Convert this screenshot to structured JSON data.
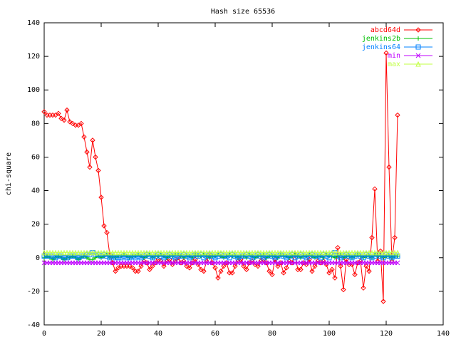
{
  "chart_data": {
    "type": "line",
    "title": "Hash size 65536",
    "y_label": "chi-square",
    "x": [
      0,
      1,
      2,
      3,
      4,
      5,
      6,
      7,
      8,
      9,
      10,
      11,
      12,
      13,
      14,
      15,
      16,
      17,
      18,
      19,
      20,
      21,
      22,
      23,
      24,
      25,
      26,
      27,
      28,
      29,
      30,
      31,
      32,
      33,
      34,
      35,
      36,
      37,
      38,
      39,
      40,
      41,
      42,
      43,
      44,
      45,
      46,
      47,
      48,
      49,
      50,
      51,
      52,
      53,
      54,
      55,
      56,
      57,
      58,
      59,
      60,
      61,
      62,
      63,
      64,
      65,
      66,
      67,
      68,
      69,
      70,
      71,
      72,
      73,
      74,
      75,
      76,
      77,
      78,
      79,
      80,
      81,
      82,
      83,
      84,
      85,
      86,
      87,
      88,
      89,
      90,
      91,
      92,
      93,
      94,
      95,
      96,
      97,
      98,
      99,
      100,
      101,
      102,
      103,
      104,
      105,
      106,
      107,
      108,
      109,
      110,
      111,
      112,
      113,
      114,
      115,
      116,
      117,
      118,
      119,
      120,
      121,
      122,
      123,
      124
    ],
    "series": [
      {
        "name": "abcd64d",
        "color": "#ff0000",
        "marker": "diamond",
        "values": [
          87,
          85,
          85,
          85,
          85,
          86,
          83,
          82,
          88,
          81,
          80,
          79,
          79,
          80,
          72,
          63,
          54,
          70,
          60,
          52,
          36,
          19,
          15,
          2,
          -3,
          -8,
          -6,
          -5,
          -5,
          -5,
          -5,
          -6,
          -8,
          -8,
          -5,
          -2,
          -3,
          -7,
          -5,
          -3,
          -1,
          -2,
          -5,
          -2,
          -1,
          -4,
          -2,
          0,
          -3,
          -2,
          -5,
          -6,
          -3,
          -1,
          -4,
          -7,
          -8,
          -2,
          2,
          -3,
          -6,
          -12,
          -8,
          -5,
          -3,
          -9,
          -9,
          -5,
          -2,
          -1,
          -5,
          -7,
          -3,
          -2,
          -4,
          -5,
          -2,
          -1,
          -3,
          -8,
          -10,
          -1,
          -5,
          -3,
          -9,
          -6,
          -2,
          -3,
          2,
          -7,
          -7,
          -3,
          -4,
          -1,
          -8,
          -5,
          -2,
          -3,
          -2,
          -4,
          -9,
          -7,
          -12,
          6,
          -5,
          -19,
          -1,
          -4,
          -4,
          -10,
          -3,
          -2,
          -18,
          -5,
          -8,
          12,
          41,
          -2,
          4,
          -26,
          122,
          54,
          -2,
          12,
          85
        ]
      },
      {
        "name": "jenkins2b",
        "color": "#00c000",
        "marker": "plus",
        "values": [
          0,
          1,
          0,
          -1,
          0,
          1,
          0,
          -1,
          0,
          0,
          1,
          0,
          -1,
          0,
          1,
          0,
          -1,
          -1,
          0,
          1,
          0,
          1,
          2,
          0,
          1,
          0,
          1,
          1,
          2,
          1,
          0,
          1,
          1,
          2,
          1,
          0,
          1,
          2,
          0,
          1,
          1,
          2,
          1,
          0,
          1,
          1,
          2,
          2,
          1,
          0,
          1,
          1,
          0,
          2,
          1,
          1,
          2,
          1,
          0,
          1,
          1,
          2,
          1,
          0,
          1,
          2,
          1,
          1,
          0,
          1,
          1,
          0,
          2,
          1,
          0,
          1,
          1,
          2,
          0,
          1,
          1,
          1,
          0,
          2,
          1,
          1,
          0,
          1,
          2,
          1,
          0,
          1,
          1,
          2,
          1,
          0,
          1,
          1,
          0,
          2,
          1,
          1,
          0,
          1,
          2,
          0,
          1,
          1,
          0,
          1,
          2,
          1,
          0,
          1,
          1,
          0,
          2,
          1,
          1,
          0,
          1,
          1,
          0,
          1,
          1
        ]
      },
      {
        "name": "jenkins64",
        "color": "#0080ff",
        "marker": "square",
        "values": [
          1,
          1,
          1,
          1,
          0,
          1,
          1,
          0,
          0,
          1,
          1,
          1,
          0,
          1,
          1,
          2,
          2,
          3,
          2,
          2,
          1,
          2,
          1,
          0,
          1,
          0,
          0,
          0,
          1,
          0,
          0,
          1,
          0,
          1,
          0,
          1,
          2,
          1,
          0,
          1,
          2,
          1,
          0,
          1,
          2,
          1,
          0,
          1,
          1,
          2,
          1,
          0,
          1,
          2,
          1,
          2,
          0,
          1,
          2,
          1,
          0,
          1,
          2,
          1,
          1,
          0,
          2,
          1,
          0,
          1,
          1,
          2,
          1,
          0,
          1,
          2,
          1,
          0,
          1,
          2,
          1,
          0,
          1,
          2,
          1,
          0,
          1,
          2,
          0,
          1,
          2,
          1,
          0,
          1,
          2,
          1,
          1,
          0,
          2,
          1,
          0,
          2,
          3,
          1,
          0,
          1,
          2,
          1,
          0,
          1,
          2,
          1,
          0,
          2,
          1,
          0,
          1,
          2,
          1,
          0,
          2,
          1,
          0,
          1,
          1
        ]
      },
      {
        "name": "min",
        "color": "#c000ff",
        "marker": "cross",
        "values": [
          -3,
          -3,
          -3,
          -3,
          -3,
          -3,
          -3,
          -3,
          -3,
          -3,
          -3,
          -3,
          -3,
          -3,
          -3,
          -3,
          -3,
          -3,
          -3,
          -3,
          -3,
          -3,
          -3,
          -3,
          -3,
          -3,
          -3,
          -3,
          -3,
          -3,
          -3,
          -3,
          -3,
          -3,
          -3,
          -3,
          -3,
          -3,
          -3,
          -3,
          -3,
          -3,
          -3,
          -3,
          -3,
          -3,
          -3,
          -3,
          -3,
          -3,
          -3,
          -3,
          -3,
          -3,
          -3,
          -3,
          -3,
          -3,
          -3,
          -3,
          -3,
          -3,
          -3,
          -3,
          -3,
          -3,
          -3,
          -3,
          -3,
          -3,
          -3,
          -3,
          -3,
          -3,
          -3,
          -3,
          -3,
          -3,
          -3,
          -3,
          -3,
          -3,
          -3,
          -3,
          -3,
          -3,
          -3,
          -3,
          -3,
          -3,
          -3,
          -3,
          -3,
          -3,
          -3,
          -3,
          -3,
          -3,
          -3,
          -3,
          -3,
          -3,
          -3,
          -3,
          -3,
          -3,
          -3,
          -3,
          -3,
          -3,
          -3,
          -3,
          -3,
          -3,
          -3,
          -3,
          -3,
          -3,
          -3,
          -3,
          -3,
          -3,
          -3,
          -3,
          -3
        ]
      },
      {
        "name": "max",
        "color": "#c0ff40",
        "marker": "triangle",
        "values": [
          3,
          3,
          3,
          3,
          3,
          3,
          3,
          3,
          3,
          3,
          3,
          3,
          3,
          3,
          3,
          3,
          3,
          3,
          3,
          3,
          3,
          3,
          3,
          3,
          3,
          3,
          3,
          3,
          3,
          3,
          3,
          3,
          3,
          3,
          3,
          3,
          3,
          3,
          3,
          3,
          3,
          3,
          3,
          3,
          3,
          3,
          3,
          3,
          3,
          3,
          3,
          3,
          3,
          3,
          3,
          3,
          3,
          3,
          3,
          3,
          3,
          3,
          3,
          3,
          3,
          3,
          3,
          3,
          3,
          3,
          3,
          3,
          3,
          3,
          3,
          3,
          3,
          3,
          3,
          3,
          3,
          3,
          3,
          3,
          3,
          3,
          3,
          3,
          3,
          3,
          3,
          3,
          3,
          3,
          3,
          3,
          3,
          3,
          3,
          3,
          3,
          3,
          3,
          3,
          3,
          3,
          3,
          3,
          3,
          3,
          3,
          3,
          3,
          3,
          3,
          3,
          3,
          3,
          3,
          3,
          3,
          3,
          3,
          3,
          3
        ]
      }
    ],
    "xlim": [
      0,
      140
    ],
    "xticks": [
      0,
      20,
      40,
      60,
      80,
      100,
      120,
      140
    ],
    "ylim": [
      -40,
      140
    ],
    "yticks": [
      -40,
      -20,
      0,
      20,
      40,
      60,
      80,
      100,
      120,
      140
    ],
    "grid": false,
    "legend": "top-right"
  }
}
